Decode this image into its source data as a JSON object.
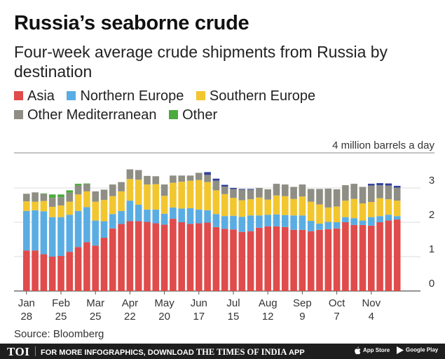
{
  "header": {
    "title": "Russia’s seaborne crude",
    "subtitle": "Four-week average crude shipments from Russia by destination"
  },
  "legend": [
    {
      "label": "Asia",
      "color": "#e04b4b"
    },
    {
      "label": "Northern Europe",
      "color": "#5aade3"
    },
    {
      "label": "Southern Europe",
      "color": "#f2c62e"
    },
    {
      "label": "Other Mediterranean",
      "color": "#8e8e84"
    },
    {
      "label": "Other",
      "color": "#4caa3e"
    }
  ],
  "chart_data": {
    "type": "bar",
    "stacked": true,
    "unit_label": "4 million barrels a day",
    "ylim": [
      0,
      4
    ],
    "yticks": [
      "0",
      "1",
      "2",
      "3"
    ],
    "xtick_labels": [
      {
        "index": 0,
        "line1": "Jan",
        "line2": "28"
      },
      {
        "index": 4,
        "line1": "Feb",
        "line2": "25"
      },
      {
        "index": 8,
        "line1": "Mar",
        "line2": "25"
      },
      {
        "index": 12,
        "line1": "Apr",
        "line2": "22"
      },
      {
        "index": 16,
        "line1": "May",
        "line2": "20"
      },
      {
        "index": 20,
        "line1": "Jun",
        "line2": "17"
      },
      {
        "index": 24,
        "line1": "Jul",
        "line2": "15"
      },
      {
        "index": 28,
        "line1": "Aug",
        "line2": "12"
      },
      {
        "index": 32,
        "line1": "Sep",
        "line2": "9"
      },
      {
        "index": 36,
        "line1": "Oct",
        "line2": "7"
      },
      {
        "index": 40,
        "line1": "Nov",
        "line2": "4"
      }
    ],
    "series": [
      {
        "name": "Asia",
        "color": "#e04b4b",
        "values": [
          1.18,
          1.18,
          1.07,
          1.0,
          1.02,
          1.14,
          1.28,
          1.42,
          1.32,
          1.55,
          1.82,
          1.95,
          2.03,
          2.03,
          2.01,
          1.97,
          1.93,
          2.1,
          2.0,
          1.95,
          1.97,
          1.99,
          1.86,
          1.81,
          1.79,
          1.72,
          1.74,
          1.84,
          1.88,
          1.88,
          1.86,
          1.78,
          1.78,
          1.74,
          1.78,
          1.8,
          1.82,
          2.0,
          1.92,
          1.92,
          1.9,
          2.0,
          2.05,
          2.08
        ]
      },
      {
        "name": "Northern Europe",
        "color": "#5aade3",
        "values": [
          1.15,
          1.17,
          1.25,
          1.15,
          1.13,
          1.08,
          1.05,
          1.02,
          0.73,
          0.48,
          0.42,
          0.38,
          0.6,
          0.48,
          0.36,
          0.4,
          0.32,
          0.33,
          0.4,
          0.46,
          0.4,
          0.36,
          0.38,
          0.37,
          0.4,
          0.44,
          0.46,
          0.36,
          0.34,
          0.35,
          0.35,
          0.42,
          0.42,
          0.3,
          0.18,
          0.21,
          0.18,
          0.15,
          0.2,
          0.13,
          0.25,
          0.18,
          0.17,
          0.1
        ]
      },
      {
        "name": "Southern Europe",
        "color": "#f2c62e",
        "values": [
          0.28,
          0.25,
          0.3,
          0.3,
          0.34,
          0.38,
          0.48,
          0.46,
          0.55,
          0.62,
          0.52,
          0.57,
          0.63,
          0.73,
          0.73,
          0.74,
          0.52,
          0.72,
          0.78,
          0.8,
          0.86,
          0.82,
          0.69,
          0.64,
          0.52,
          0.48,
          0.47,
          0.52,
          0.44,
          0.55,
          0.55,
          0.48,
          0.55,
          0.56,
          0.56,
          0.42,
          0.46,
          0.48,
          0.56,
          0.5,
          0.44,
          0.52,
          0.45,
          0.45
        ]
      },
      {
        "name": "Other Mediterranean",
        "color": "#8e8e84",
        "values": [
          0.22,
          0.27,
          0.2,
          0.26,
          0.24,
          0.26,
          0.26,
          0.21,
          0.3,
          0.3,
          0.34,
          0.27,
          0.28,
          0.28,
          0.25,
          0.23,
          0.33,
          0.21,
          0.18,
          0.15,
          0.21,
          0.21,
          0.28,
          0.22,
          0.26,
          0.31,
          0.28,
          0.28,
          0.3,
          0.34,
          0.34,
          0.35,
          0.35,
          0.37,
          0.45,
          0.55,
          0.5,
          0.45,
          0.44,
          0.48,
          0.48,
          0.38,
          0.4,
          0.38
        ]
      },
      {
        "name": "Other",
        "color": "#4caa3e",
        "values": [
          0.0,
          0.0,
          0.02,
          0.1,
          0.08,
          0.07,
          0.05,
          0.02,
          0.0,
          0.0,
          0.0,
          0.0,
          0.0,
          0.0,
          0.0,
          0.0,
          0.0,
          0.0,
          0.0,
          0.0,
          0.0,
          0.0,
          0.0,
          0.0,
          0.0,
          0.0,
          0.0,
          0.0,
          0.0,
          0.0,
          0.0,
          0.0,
          0.0,
          0.0,
          0.0,
          0.0,
          0.0,
          0.0,
          0.0,
          0.0,
          0.0,
          0.0,
          0.0,
          0.0
        ]
      },
      {
        "name": "",
        "color": "#2f3f9a",
        "values": [
          0,
          0,
          0,
          0,
          0,
          0,
          0,
          0,
          0,
          0,
          0,
          0,
          0,
          0,
          0,
          0,
          0,
          0,
          0,
          0,
          0,
          0.08,
          0.06,
          0.05,
          0.03,
          0.02,
          0.02,
          0,
          0,
          0,
          0,
          0,
          0,
          0,
          0,
          0,
          0,
          0,
          0,
          0,
          0.05,
          0.06,
          0.06,
          0.05
        ]
      }
    ],
    "grid": true,
    "legend_position": "top"
  },
  "source": "Source: Bloomberg",
  "footer": {
    "brand": "TOI",
    "promo_text": "FOR MORE INFOGRAPHICS, DOWNLOAD",
    "promo_brand": "THE TIMES OF INDIA",
    "promo_suffix": "APP",
    "app_store": "App Store",
    "google_play": "Google Play",
    "apple_icon": "apple-icon",
    "play_icon": "play-store-icon"
  }
}
